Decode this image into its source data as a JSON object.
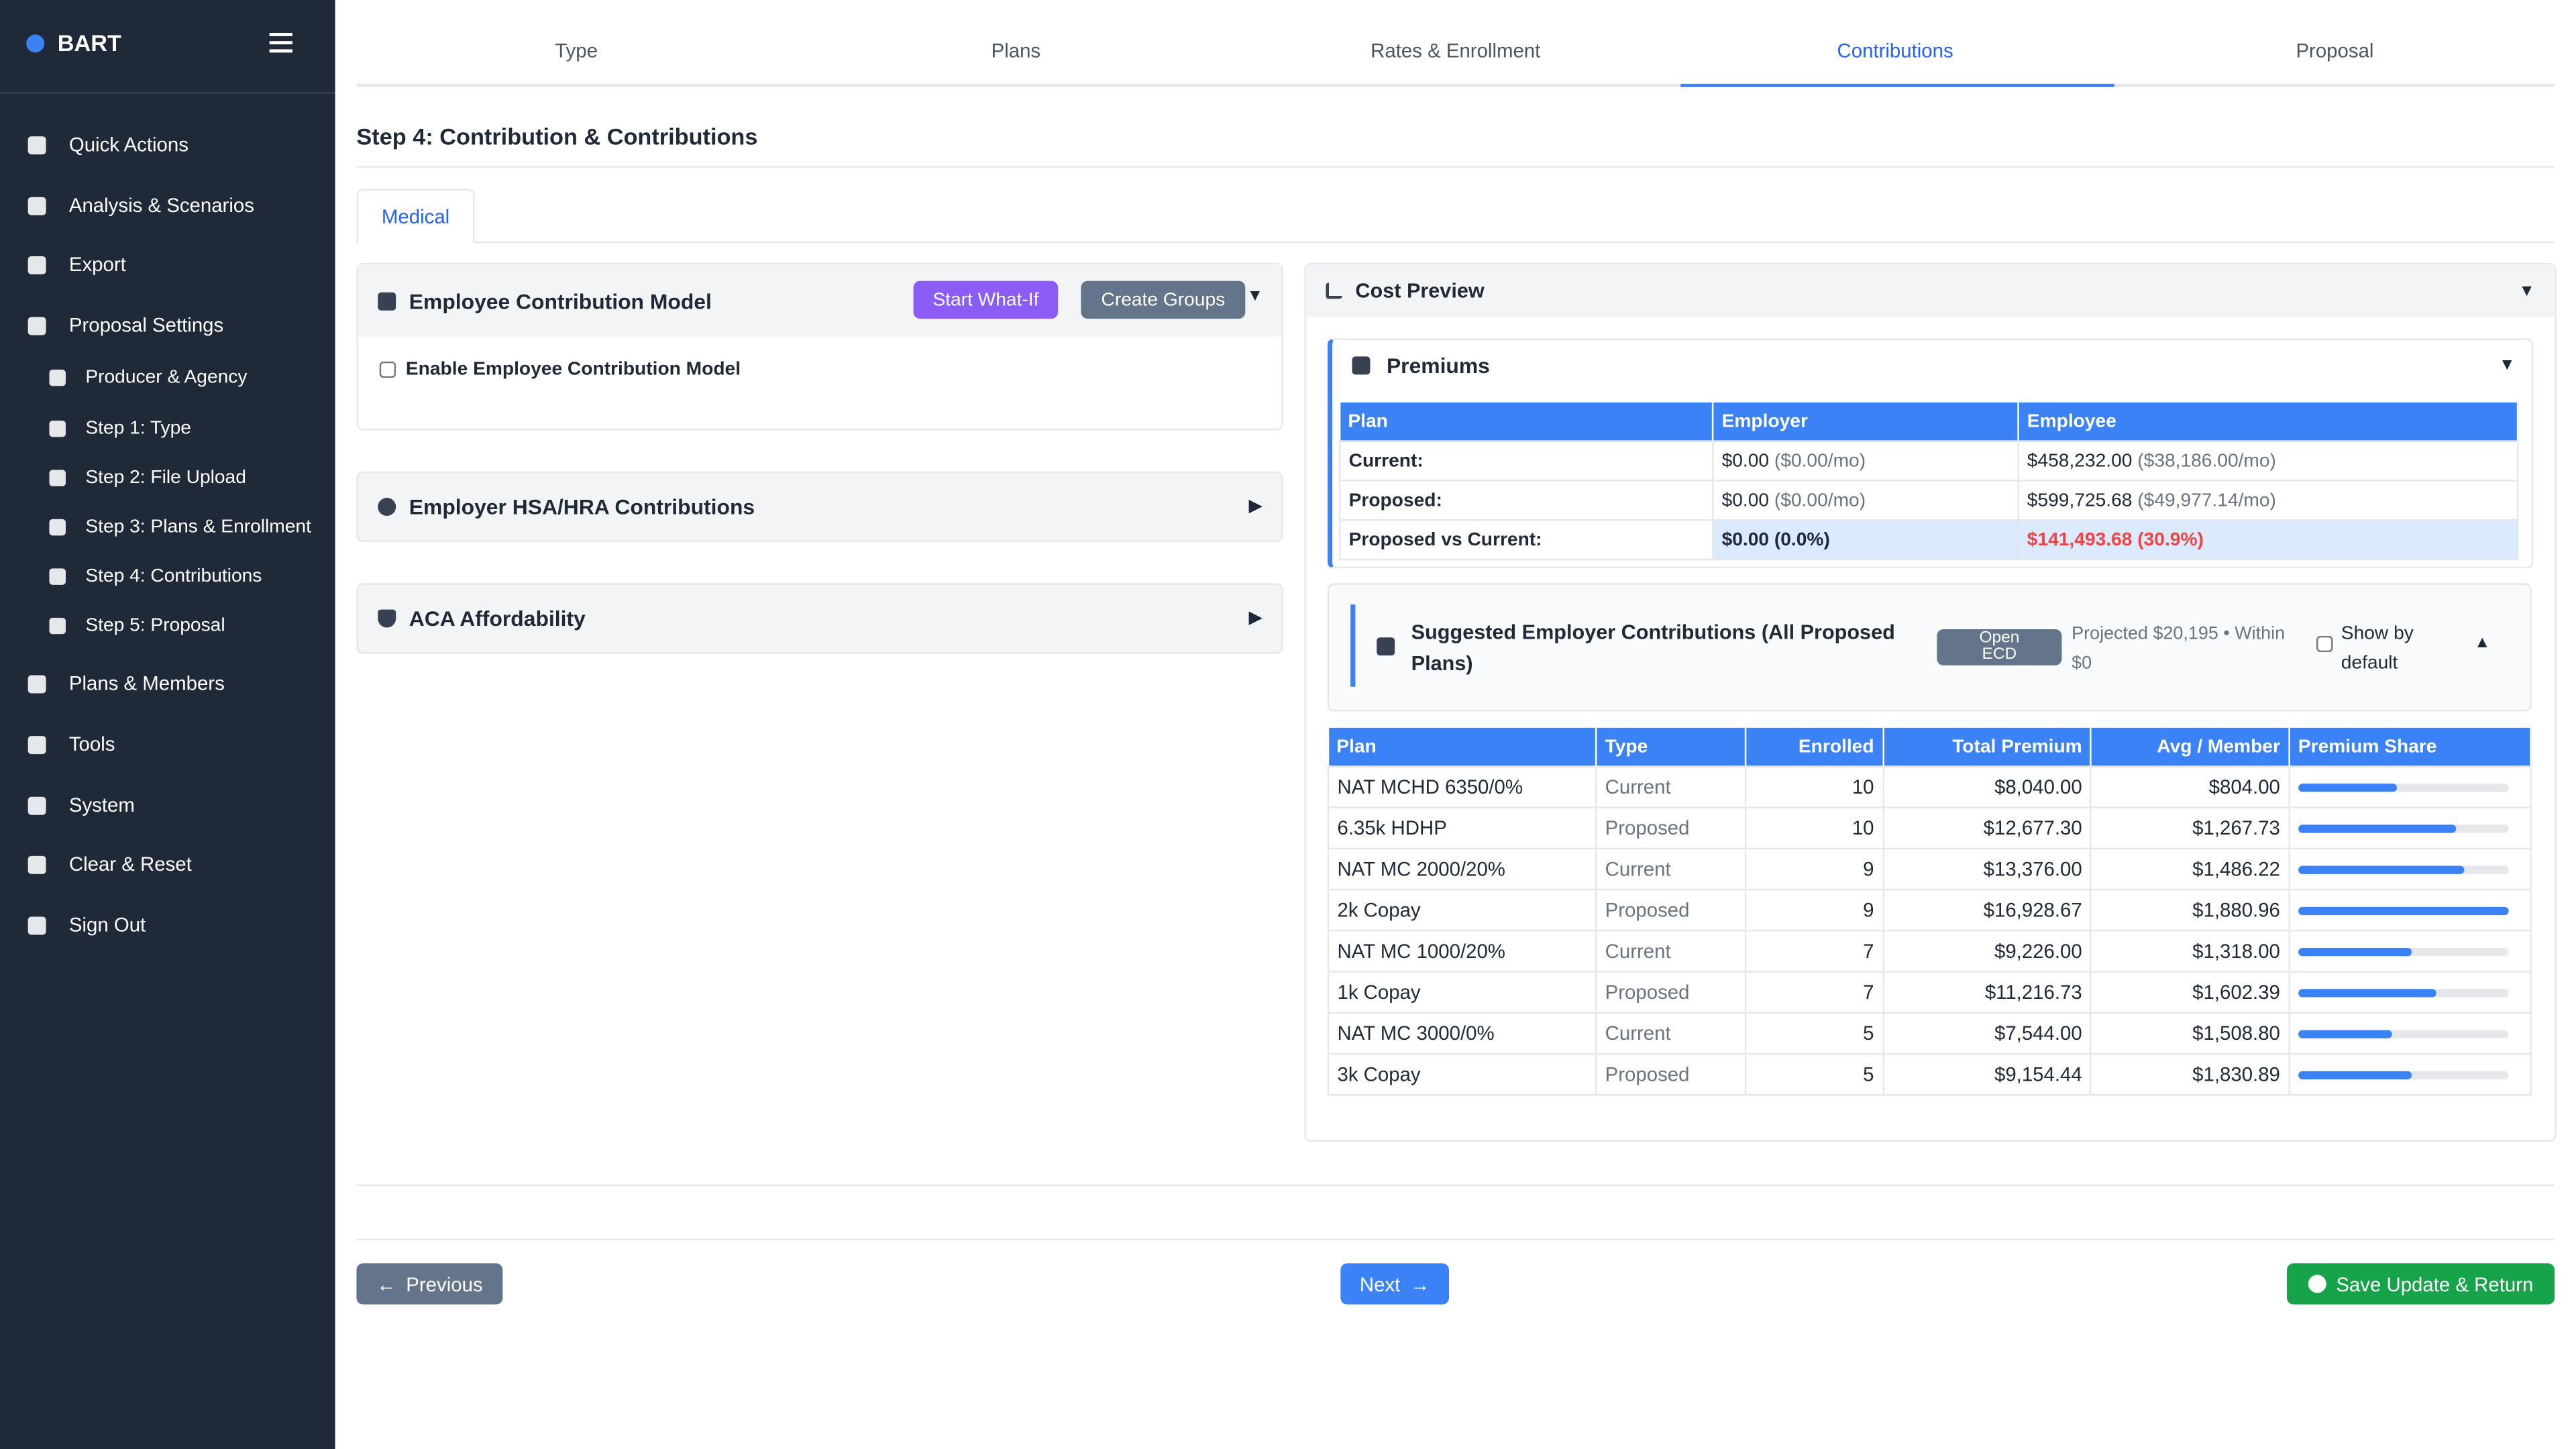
{
  "sidebar": {
    "brand": "BART",
    "items": [
      {
        "label": "Quick Actions"
      },
      {
        "label": "Analysis & Scenarios"
      },
      {
        "label": "Export"
      },
      {
        "label": "Proposal Settings",
        "children": [
          "Producer & Agency",
          "Step 1: Type",
          "Step 2: File Upload",
          "Step 3: Plans & Enrollment",
          "Step 4: Contributions",
          "Step 5: Proposal"
        ]
      },
      {
        "label": "Plans & Members"
      },
      {
        "label": "Tools"
      },
      {
        "label": "System"
      },
      {
        "label": "Clear & Reset"
      },
      {
        "label": "Sign Out"
      }
    ]
  },
  "tabs": {
    "items": [
      "Type",
      "Plans",
      "Rates & Enrollment",
      "Contributions",
      "Proposal"
    ],
    "active": 3
  },
  "step_title": "Step 4: Contribution & Contributions",
  "subtab": "Medical",
  "employee_contribution_model": {
    "title": "Employee Contribution Model",
    "buttons": [
      "Start What-If",
      "Create Groups"
    ],
    "checkbox": "Enable Employee Contribution Model"
  },
  "hsa_title": "Employer HSA/HRA Contributions",
  "aca_title": "ACA Affordability",
  "cost_preview": {
    "title": "Cost Preview",
    "premiums": {
      "title": "Premiums",
      "header": [
        "Plan",
        "Employer",
        "Employee"
      ],
      "rows": [
        {
          "label": "Current:",
          "employer": "$0.00",
          "employer_sub": "($0.00/mo)",
          "employee": "$458,232.00",
          "employee_sub": "($38,186.00/mo)"
        },
        {
          "label": "Proposed:",
          "employer": "$0.00",
          "employer_sub": "($0.00/mo)",
          "employee": "$599,725.68",
          "employee_sub": "($49,977.14/mo)"
        },
        {
          "label": "Proposed vs Current:",
          "employer": "$0.00 (0.0%)",
          "employee": "$141,493.68 (30.9%)"
        }
      ]
    },
    "suggested": {
      "title": "Suggested Employer Contributions (All Proposed Plans)",
      "button": "Open ECD",
      "projected": "Projected $20,195 • Within $0",
      "show_default": "Show by default"
    },
    "plans": {
      "header": [
        "Plan",
        "Type",
        "Enrolled",
        "Total Premium",
        "Avg / Member",
        "Premium Share"
      ],
      "rows": [
        {
          "plan": "NAT MCHD 6350/0%",
          "type": "Current",
          "enrolled": 10,
          "total": "$8,040.00",
          "avg": "$804.00",
          "share": 47
        },
        {
          "plan": "6.35k HDHP",
          "type": "Proposed",
          "enrolled": 10,
          "total": "$12,677.30",
          "avg": "$1,267.73",
          "share": 75
        },
        {
          "plan": "NAT MC 2000/20%",
          "type": "Current",
          "enrolled": 9,
          "total": "$13,376.00",
          "avg": "$1,486.22",
          "share": 79
        },
        {
          "plan": "2k Copay",
          "type": "Proposed",
          "enrolled": 9,
          "total": "$16,928.67",
          "avg": "$1,880.96",
          "share": 100
        },
        {
          "plan": "NAT MC 1000/20%",
          "type": "Current",
          "enrolled": 7,
          "total": "$9,226.00",
          "avg": "$1,318.00",
          "share": 54
        },
        {
          "plan": "1k Copay",
          "type": "Proposed",
          "enrolled": 7,
          "total": "$11,216.73",
          "avg": "$1,602.39",
          "share": 66
        },
        {
          "plan": "NAT MC 3000/0%",
          "type": "Current",
          "enrolled": 5,
          "total": "$7,544.00",
          "avg": "$1,508.80",
          "share": 45
        },
        {
          "plan": "3k Copay",
          "type": "Proposed",
          "enrolled": 5,
          "total": "$9,154.44",
          "avg": "$1,830.89",
          "share": 54
        }
      ]
    }
  },
  "footer": {
    "previous": "Previous",
    "next": "Next",
    "save": "Save Update & Return"
  }
}
